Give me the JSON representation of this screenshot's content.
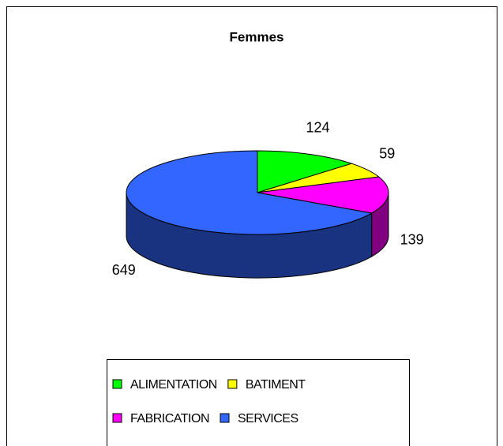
{
  "chart_data": {
    "type": "pie3d",
    "title": "Femmes",
    "categories": [
      "ALIMENTATION",
      "BATIMENT",
      "FABRICATION",
      "SERVICES"
    ],
    "values": [
      124,
      59,
      139,
      649
    ],
    "colors": [
      "#00ff00",
      "#ffff00",
      "#ff00ff",
      "#3366ff"
    ],
    "legend": "bottom"
  }
}
